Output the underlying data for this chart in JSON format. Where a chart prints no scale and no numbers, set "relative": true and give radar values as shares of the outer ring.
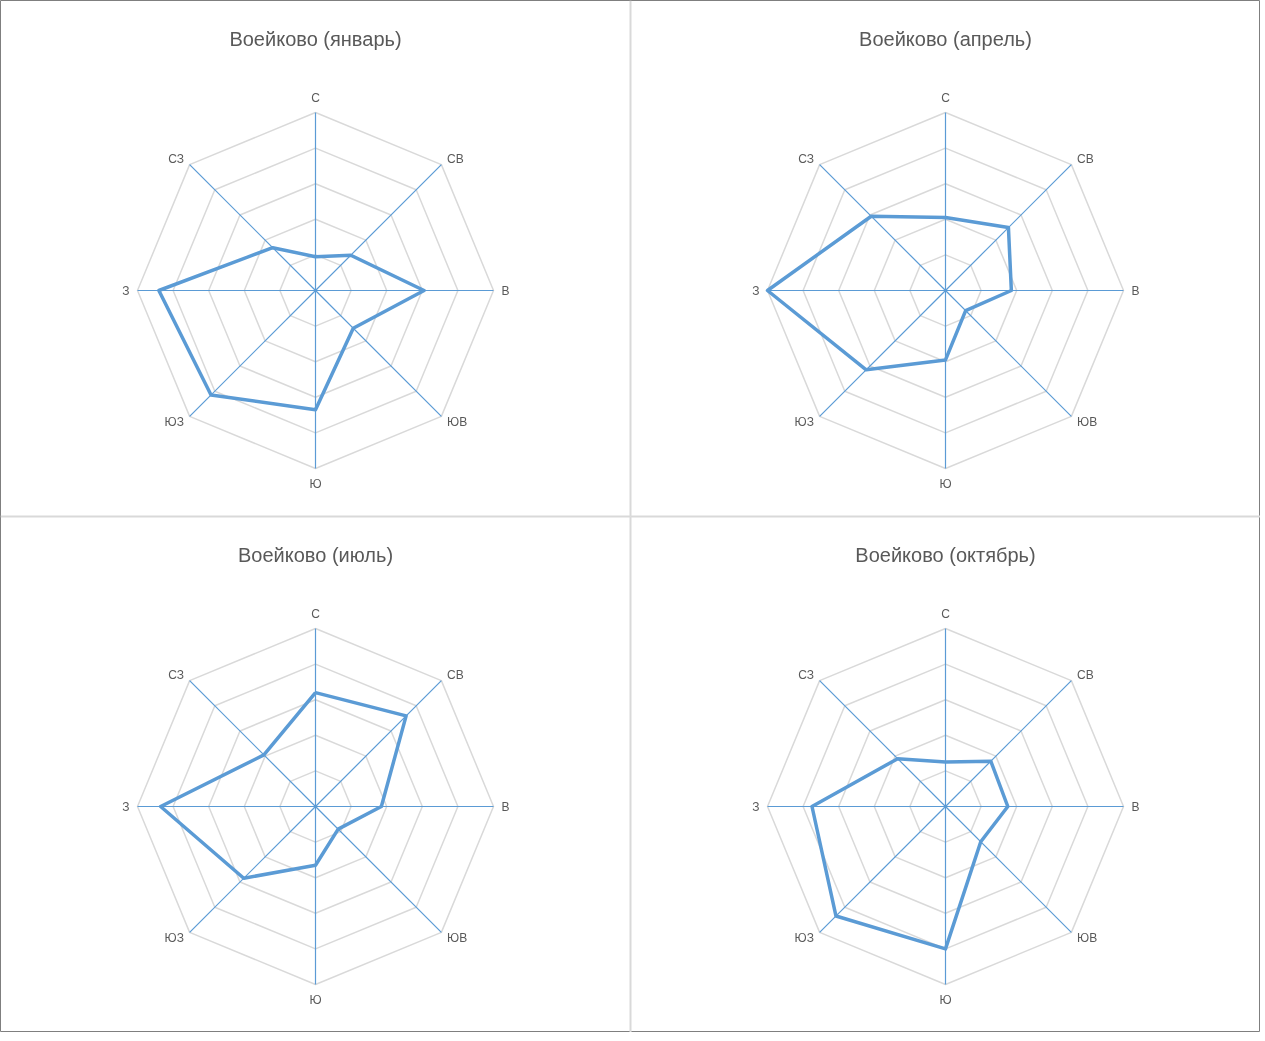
{
  "chart_data": [
    {
      "type": "radar",
      "title": "Воейково (январь)",
      "categories": [
        "С",
        "СВ",
        "В",
        "ЮВ",
        "Ю",
        "ЮЗ",
        "З",
        "СЗ"
      ],
      "relative": true,
      "grid": true,
      "series": [
        {
          "color": "#5b9bd5",
          "values": [
            0.19,
            0.28,
            0.61,
            0.3,
            0.67,
            0.83,
            0.88,
            0.34
          ]
        }
      ]
    },
    {
      "type": "radar",
      "title": "Воейково (апрель)",
      "categories": [
        "С",
        "СВ",
        "В",
        "ЮВ",
        "Ю",
        "ЮЗ",
        "З",
        "СЗ"
      ],
      "relative": true,
      "grid": true,
      "series": [
        {
          "color": "#5b9bd5",
          "values": [
            0.41,
            0.5,
            0.37,
            0.16,
            0.39,
            0.63,
            1.0,
            0.59
          ]
        }
      ]
    },
    {
      "type": "radar",
      "title": "Воейково (июль)",
      "categories": [
        "С",
        "СВ",
        "В",
        "ЮВ",
        "Ю",
        "ЮЗ",
        "З",
        "СЗ"
      ],
      "relative": true,
      "grid": true,
      "series": [
        {
          "color": "#5b9bd5",
          "values": [
            0.64,
            0.72,
            0.37,
            0.18,
            0.33,
            0.57,
            0.87,
            0.41
          ]
        }
      ]
    },
    {
      "type": "radar",
      "title": "Воейково (октябрь)",
      "categories": [
        "С",
        "СВ",
        "В",
        "ЮВ",
        "Ю",
        "ЮЗ",
        "З",
        "СЗ"
      ],
      "relative": true,
      "grid": true,
      "series": [
        {
          "color": "#5b9bd5",
          "values": [
            0.25,
            0.36,
            0.35,
            0.28,
            0.8,
            0.87,
            0.75,
            0.38
          ]
        }
      ]
    }
  ]
}
